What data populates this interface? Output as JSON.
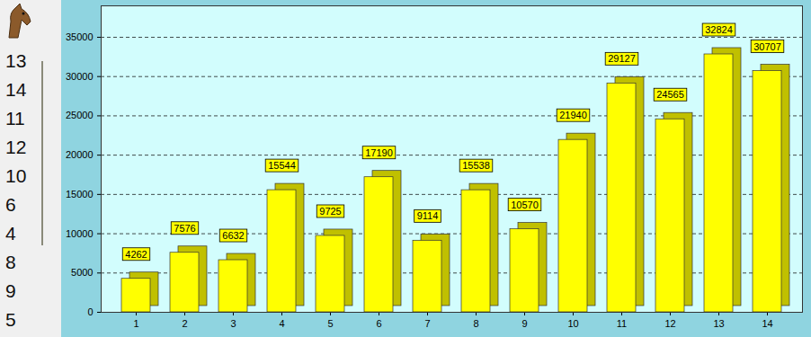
{
  "chart_data": {
    "type": "bar",
    "categories": [
      "1",
      "2",
      "3",
      "4",
      "5",
      "6",
      "7",
      "8",
      "9",
      "10",
      "11",
      "12",
      "13",
      "14"
    ],
    "values": [
      4262,
      7576,
      6632,
      15544,
      9725,
      17190,
      9114,
      15538,
      10570,
      21940,
      29127,
      24565,
      32824,
      30707
    ],
    "color": "#ffff00",
    "ylim": [
      0,
      39000
    ],
    "yticks": [
      0,
      5000,
      10000,
      15000,
      20000,
      25000,
      30000,
      35000
    ],
    "grid": true,
    "data_labels": true
  },
  "side_list": {
    "items": [
      13,
      14,
      11,
      12,
      10,
      6,
      4,
      8,
      9,
      5
    ]
  }
}
